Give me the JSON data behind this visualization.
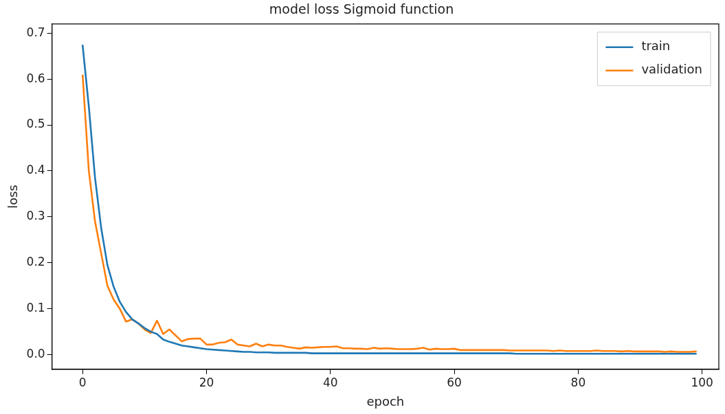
{
  "chart_data": {
    "type": "line",
    "title": "model loss Sigmoid function",
    "xlabel": "epoch",
    "ylabel": "loss",
    "x": [
      0,
      1,
      2,
      3,
      4,
      5,
      6,
      7,
      8,
      9,
      10,
      11,
      12,
      13,
      14,
      15,
      16,
      17,
      18,
      19,
      20,
      21,
      22,
      23,
      24,
      25,
      26,
      27,
      28,
      29,
      30,
      31,
      32,
      33,
      34,
      35,
      36,
      37,
      38,
      39,
      40,
      41,
      42,
      43,
      44,
      45,
      46,
      47,
      48,
      49,
      50,
      51,
      52,
      53,
      54,
      55,
      56,
      57,
      58,
      59,
      60,
      61,
      62,
      63,
      64,
      65,
      66,
      67,
      68,
      69,
      70,
      71,
      72,
      73,
      74,
      75,
      76,
      77,
      78,
      79,
      80,
      81,
      82,
      83,
      84,
      85,
      86,
      87,
      88,
      89,
      90,
      91,
      92,
      93,
      94,
      95,
      96,
      97,
      98,
      99
    ],
    "series": [
      {
        "name": "train",
        "color": "#1f77b4",
        "values": [
          0.673,
          0.54,
          0.385,
          0.275,
          0.195,
          0.148,
          0.115,
          0.093,
          0.077,
          0.068,
          0.058,
          0.05,
          0.045,
          0.033,
          0.028,
          0.024,
          0.02,
          0.018,
          0.016,
          0.014,
          0.012,
          0.011,
          0.01,
          0.009,
          0.008,
          0.007,
          0.006,
          0.006,
          0.005,
          0.005,
          0.005,
          0.004,
          0.004,
          0.004,
          0.004,
          0.004,
          0.004,
          0.003,
          0.003,
          0.003,
          0.003,
          0.003,
          0.003,
          0.003,
          0.003,
          0.003,
          0.003,
          0.003,
          0.003,
          0.003,
          0.003,
          0.003,
          0.003,
          0.003,
          0.003,
          0.003,
          0.003,
          0.003,
          0.003,
          0.003,
          0.003,
          0.003,
          0.003,
          0.003,
          0.003,
          0.003,
          0.003,
          0.003,
          0.003,
          0.003,
          0.002,
          0.002,
          0.002,
          0.002,
          0.002,
          0.002,
          0.002,
          0.002,
          0.002,
          0.002,
          0.002,
          0.002,
          0.002,
          0.002,
          0.002,
          0.002,
          0.002,
          0.002,
          0.002,
          0.002,
          0.002,
          0.002,
          0.002,
          0.002,
          0.002,
          0.002,
          0.002,
          0.002,
          0.002,
          0.002
        ]
      },
      {
        "name": "validation",
        "color": "#ff7f0e",
        "values": [
          0.608,
          0.4,
          0.29,
          0.22,
          0.15,
          0.12,
          0.1,
          0.072,
          0.077,
          0.068,
          0.055,
          0.047,
          0.074,
          0.045,
          0.055,
          0.042,
          0.029,
          0.034,
          0.035,
          0.035,
          0.022,
          0.022,
          0.026,
          0.027,
          0.033,
          0.022,
          0.02,
          0.018,
          0.024,
          0.018,
          0.022,
          0.02,
          0.02,
          0.017,
          0.015,
          0.013,
          0.016,
          0.015,
          0.016,
          0.017,
          0.017,
          0.018,
          0.014,
          0.014,
          0.013,
          0.013,
          0.012,
          0.015,
          0.013,
          0.014,
          0.013,
          0.012,
          0.012,
          0.012,
          0.013,
          0.015,
          0.011,
          0.013,
          0.012,
          0.012,
          0.013,
          0.01,
          0.01,
          0.01,
          0.01,
          0.01,
          0.01,
          0.01,
          0.01,
          0.009,
          0.009,
          0.009,
          0.009,
          0.009,
          0.009,
          0.009,
          0.008,
          0.009,
          0.008,
          0.008,
          0.008,
          0.008,
          0.008,
          0.009,
          0.008,
          0.008,
          0.008,
          0.007,
          0.008,
          0.007,
          0.007,
          0.007,
          0.007,
          0.007,
          0.006,
          0.007,
          0.006,
          0.006,
          0.006,
          0.007
        ]
      }
    ],
    "xlim": [
      -4.95,
      102.7
    ],
    "xticks": [
      0,
      20,
      40,
      60,
      80,
      100
    ],
    "ylim": [
      -0.032,
      0.72
    ],
    "yticks": [
      {
        "value": 0,
        "label": "0.0"
      },
      {
        "value": 0.1,
        "label": "0.1"
      },
      {
        "value": 0.2,
        "label": "0.2"
      },
      {
        "value": 0.3,
        "label": "0.3"
      },
      {
        "value": 0.4,
        "label": "0.4"
      },
      {
        "value": 0.5,
        "label": "0.5"
      },
      {
        "value": 0.6,
        "label": "0.6"
      },
      {
        "value": 0.7,
        "label": "0.7"
      }
    ],
    "legend": "top right",
    "grid": false,
    "marker": "none",
    "line_style": "solid"
  }
}
